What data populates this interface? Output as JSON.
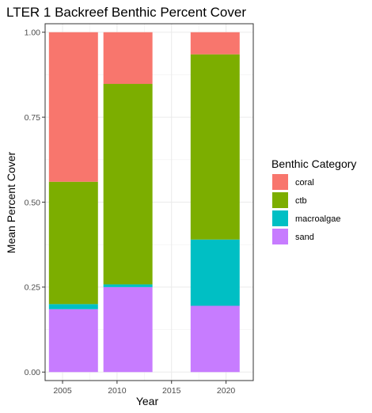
{
  "chart_data": {
    "type": "bar",
    "stacked": true,
    "title": "LTER 1 Backreef Benthic Percent Cover",
    "xlabel": "Year",
    "ylabel": "Mean Percent Cover",
    "x": [
      2006,
      2011,
      2019
    ],
    "xlim": [
      2003.4,
      2022.5
    ],
    "xticks": [
      2005,
      2010,
      2015,
      2020
    ],
    "xtick_labels": [
      "2005",
      "2010",
      "2015",
      "2020"
    ],
    "bar_width_years": 4.5,
    "ylim": [
      -0.025,
      1.025
    ],
    "yticks": [
      0,
      0.25,
      0.5,
      0.75,
      1.0
    ],
    "ytick_labels": [
      "0.00",
      "0.25",
      "0.50",
      "0.75",
      "1.00"
    ],
    "grid": true,
    "legend_title": "Benthic Category",
    "legend_position": "right",
    "series": [
      {
        "name": "sand",
        "color": "#C77CFF",
        "values": [
          0.185,
          0.25,
          0.195
        ]
      },
      {
        "name": "macroalgae",
        "color": "#00BFC4",
        "values": [
          0.015,
          0.008,
          0.195
        ]
      },
      {
        "name": "ctb",
        "color": "#7CAE00",
        "values": [
          0.36,
          0.59,
          0.545
        ]
      },
      {
        "name": "coral",
        "color": "#F8766D",
        "values": [
          0.44,
          0.152,
          0.065
        ]
      }
    ],
    "legend_order": [
      "coral",
      "ctb",
      "macroalgae",
      "sand"
    ]
  }
}
